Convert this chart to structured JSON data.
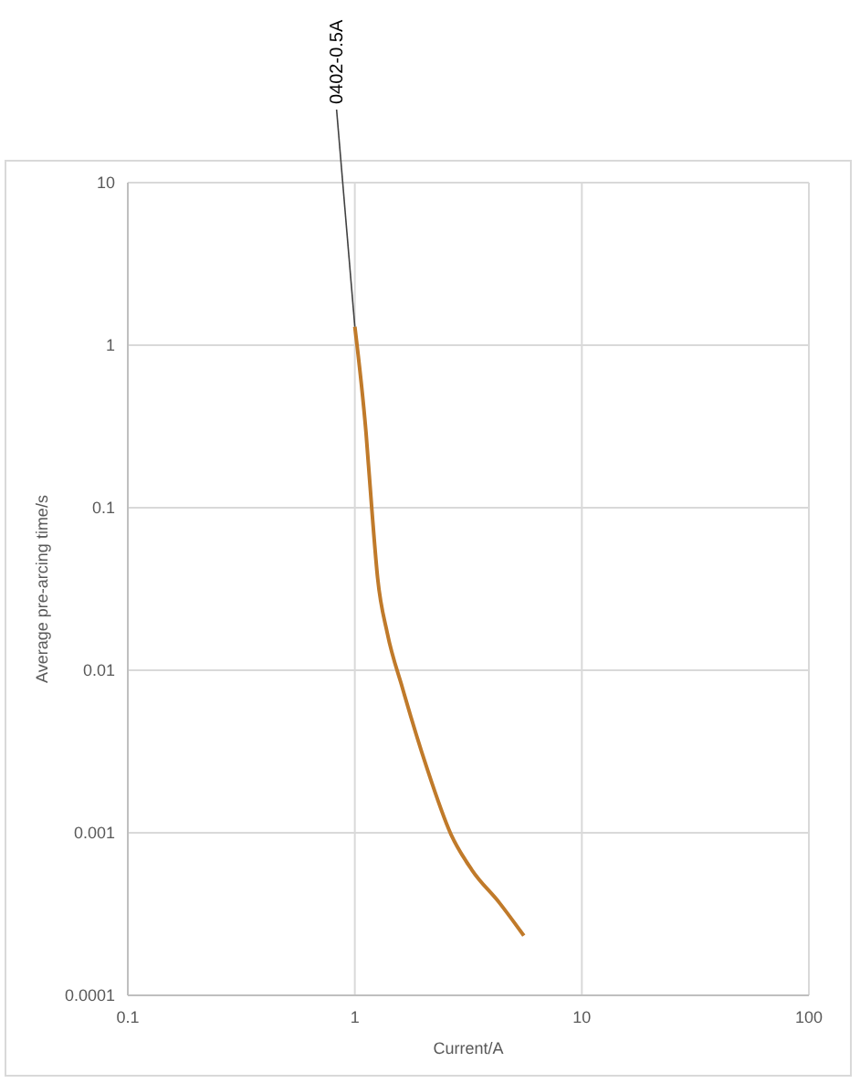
{
  "chart_data": {
    "type": "line",
    "xlabel": "Current/A",
    "ylabel": "Average pre-arcing time/s",
    "log": "xy",
    "grid": true,
    "xlim": [
      0.1,
      100
    ],
    "xticks": [
      0.1,
      1,
      10,
      100
    ],
    "ylim": [
      0.0001,
      10
    ],
    "yticks": [
      0.0001,
      0.001,
      0.01,
      0.1,
      1,
      10
    ],
    "series": [
      {
        "color": "#c07a2a",
        "x": [
          1.0,
          1.12,
          1.19,
          1.26,
          1.39,
          1.62,
          2.07,
          2.65,
          3.28,
          4.34,
          5.55
        ],
        "values": [
          1.3,
          0.29,
          0.095,
          0.037,
          0.0169,
          0.0078,
          0.00254,
          0.00098,
          0.00059,
          0.00037,
          0.000233
        ]
      }
    ],
    "annotations": [
      {
        "text": "0402-0.5A",
        "x": 1.0,
        "y": 1.3
      }
    ]
  }
}
